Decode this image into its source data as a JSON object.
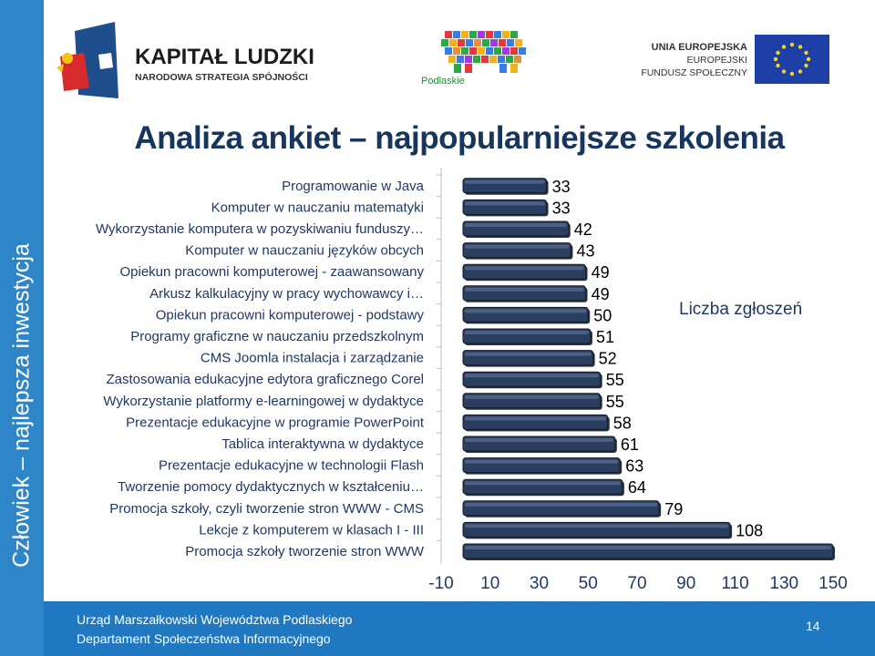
{
  "sidebar": {
    "text": "Człowiek – najlepsza inwestycja"
  },
  "header": {
    "kl_title": "KAPITAŁ LUDZKI",
    "kl_subtitle": "NARODOWA STRATEGIA SPÓJNOŚCI",
    "podlaskie": "Podlaskie",
    "eu_line1": "UNIA EUROPEJSKA",
    "eu_line2": "EUROPEJSKI",
    "eu_line3": "FUNDUSZ SPOŁECZNY"
  },
  "title": "Analiza ankiet – najpopularniejsze szkolenia",
  "chart_data": {
    "type": "bar",
    "orientation": "horizontal",
    "title": "Analiza ankiet – najpopularniejsze szkolenia",
    "legend": "Liczba zgłoszeń",
    "categories": [
      "Programowanie w Java",
      "Komputer w nauczaniu matematyki",
      "Wykorzystanie komputera w pozyskiwaniu funduszy…",
      "Komputer w nauczaniu języków obcych",
      "Opiekun pracowni komputerowej - zaawansowany",
      "Arkusz kalkulacyjny w pracy wychowawcy i…",
      "Opiekun pracowni komputerowej -  podstawy",
      "Programy graficzne w nauczaniu przedszkolnym",
      "CMS Joomla instalacja i zarządzanie",
      "Zastosowania edukacyjne edytora graficznego Corel",
      "Wykorzystanie platformy e-learningowej w dydaktyce",
      "Prezentacje edukacyjne w programie PowerPoint",
      "Tablica interaktywna w dydaktyce",
      "Prezentacje edukacyjne w technologii Flash",
      "Tworzenie pomocy dydaktycznych w kształceniu…",
      "Promocja szkoły, czyli tworzenie stron WWW - CMS",
      "Lekcje z komputerem w klasach I - III",
      "Promocja szkoły tworzenie stron WWW"
    ],
    "series": [
      {
        "name": "Liczba zgłoszeń",
        "values": [
          33,
          33,
          42,
          43,
          49,
          49,
          50,
          51,
          52,
          55,
          55,
          58,
          61,
          63,
          64,
          79,
          108,
          150
        ],
        "labels": [
          "33",
          "33",
          "42",
          "43",
          "49",
          "49",
          "50",
          "51",
          "52",
          "55",
          "55",
          "58",
          "61",
          "63",
          "64",
          "79",
          "108",
          ""
        ]
      }
    ],
    "xlim": [
      -10,
      150
    ],
    "xticks": [
      "-10",
      "10",
      "30",
      "50",
      "70",
      "90",
      "110",
      "130",
      "150"
    ],
    "xtick_values": [
      -10,
      10,
      30,
      50,
      70,
      90,
      110,
      130,
      150
    ],
    "bar_color": "#2a3f5f"
  },
  "footer": {
    "line1": "Urząd Marszałkowski Województwa Podlaskiego",
    "line2": "Departament Społeczeństwa Informacyjnego",
    "page": "14"
  }
}
